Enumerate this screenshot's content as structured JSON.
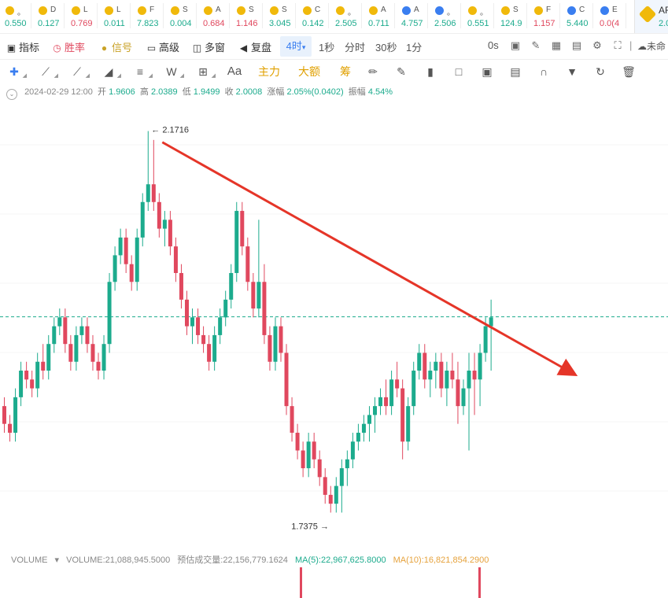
{
  "ticker_strip": [
    {
      "symbol": "。",
      "price": "0.550",
      "dir": "up",
      "icon_color": "#f0b90b"
    },
    {
      "symbol": "D",
      "price": "0.127",
      "dir": "up",
      "icon_color": "#f0b90b"
    },
    {
      "symbol": "L",
      "price": "0.769",
      "dir": "dn",
      "icon_color": "#f0b90b"
    },
    {
      "symbol": "L",
      "price": "0.011",
      "dir": "up",
      "icon_color": "#f0b90b"
    },
    {
      "symbol": "F",
      "price": "7.823",
      "dir": "up",
      "icon_color": "#f0b90b"
    },
    {
      "symbol": "S",
      "price": "0.004",
      "dir": "up",
      "icon_color": "#f0b90b"
    },
    {
      "symbol": "A",
      "price": "0.684",
      "dir": "dn",
      "icon_color": "#f0b90b"
    },
    {
      "symbol": "S",
      "price": "1.146",
      "dir": "dn",
      "icon_color": "#f0b90b"
    },
    {
      "symbol": "S",
      "price": "3.045",
      "dir": "up",
      "icon_color": "#f0b90b"
    },
    {
      "symbol": "C",
      "price": "0.142",
      "dir": "up",
      "icon_color": "#f0b90b"
    },
    {
      "symbol": "。",
      "price": "2.505",
      "dir": "up",
      "icon_color": "#f0b90b"
    },
    {
      "symbol": "A",
      "price": "0.711",
      "dir": "up",
      "icon_color": "#f0b90b"
    },
    {
      "symbol": "A",
      "price": "4.757",
      "dir": "up",
      "icon_color": "#3a7ef0"
    },
    {
      "symbol": "。",
      "price": "2.506",
      "dir": "up",
      "icon_color": "#3a7ef0"
    },
    {
      "symbol": "。",
      "price": "0.551",
      "dir": "up",
      "icon_color": "#f0b90b"
    },
    {
      "symbol": "S",
      "price": "124.9",
      "dir": "up",
      "icon_color": "#f0b90b"
    },
    {
      "symbol": "F",
      "price": "1.157",
      "dir": "dn",
      "icon_color": "#f0b90b"
    },
    {
      "symbol": "C",
      "price": "5.440",
      "dir": "up",
      "icon_color": "#3a7ef0"
    },
    {
      "symbol": "E",
      "price": "0.0(4",
      "dir": "dn",
      "icon_color": "#3a7ef0"
    }
  ],
  "active_ticker": {
    "symbol": "AF",
    "price": "2.0"
  },
  "toolbar": {
    "indicators": "指标",
    "win_rate": "胜率",
    "signal": "信号",
    "advanced": "高级",
    "multi_window": "多窗",
    "replay": "复盘",
    "interval_active": "4时",
    "interval_caret": "▾",
    "intervals": [
      "1秒",
      "分时",
      "30秒",
      "1分"
    ],
    "countdown": "0s",
    "cloud_label": "未命"
  },
  "drawbar": {
    "main_force": "主力",
    "big_order": "大额",
    "chips": "筹",
    "text_tool": "Aa"
  },
  "ohlc": {
    "datetime": "2024-02-29 12:00",
    "open_label": "开",
    "open": "1.9606",
    "high_label": "高",
    "high": "2.0389",
    "low_label": "低",
    "low": "1.9499",
    "close_label": "收",
    "close": "2.0008",
    "change_label": "涨幅",
    "change": "2.05%(0.0402)",
    "amp_label": "振幅",
    "amp": "4.54%"
  },
  "chart_data": {
    "type": "candlestick",
    "colors": {
      "up": "#1cab8d",
      "down": "#e0485e",
      "trendline": "#e53528"
    },
    "current_price_line": 1.9606,
    "high_marker": "← 2.1716",
    "low_marker": "1.7375 →",
    "high_value": 2.1716,
    "low_value": 1.7375,
    "visible_range": {
      "min": 1.72,
      "max": 2.19
    },
    "candles": [
      [
        1.86,
        1.87,
        1.83,
        1.84
      ],
      [
        1.84,
        1.85,
        1.82,
        1.83
      ],
      [
        1.83,
        1.88,
        1.82,
        1.87
      ],
      [
        1.87,
        1.91,
        1.86,
        1.9
      ],
      [
        1.9,
        1.91,
        1.88,
        1.89
      ],
      [
        1.89,
        1.9,
        1.87,
        1.88
      ],
      [
        1.88,
        1.92,
        1.87,
        1.91
      ],
      [
        1.91,
        1.93,
        1.89,
        1.9
      ],
      [
        1.9,
        1.94,
        1.89,
        1.93
      ],
      [
        1.93,
        1.96,
        1.92,
        1.95
      ],
      [
        1.95,
        1.97,
        1.94,
        1.96
      ],
      [
        1.96,
        1.97,
        1.92,
        1.93
      ],
      [
        1.93,
        1.94,
        1.9,
        1.91
      ],
      [
        1.91,
        1.95,
        1.9,
        1.94
      ],
      [
        1.94,
        1.96,
        1.93,
        1.95
      ],
      [
        1.95,
        1.96,
        1.92,
        1.93
      ],
      [
        1.93,
        1.94,
        1.9,
        1.91
      ],
      [
        1.91,
        1.92,
        1.89,
        1.9
      ],
      [
        1.9,
        1.94,
        1.89,
        1.93
      ],
      [
        1.93,
        2.01,
        1.92,
        2.0
      ],
      [
        2.0,
        2.04,
        1.99,
        2.03
      ],
      [
        2.03,
        2.06,
        2.02,
        2.05
      ],
      [
        2.05,
        2.06,
        2.01,
        2.02
      ],
      [
        2.02,
        2.03,
        1.99,
        2.0
      ],
      [
        2.0,
        2.06,
        1.99,
        2.05
      ],
      [
        2.05,
        2.1,
        2.04,
        2.09
      ],
      [
        2.09,
        2.17,
        2.08,
        2.11
      ],
      [
        2.11,
        2.16,
        2.08,
        2.09
      ],
      [
        2.09,
        2.1,
        2.05,
        2.06
      ],
      [
        2.06,
        2.08,
        2.04,
        2.07
      ],
      [
        2.07,
        2.08,
        2.03,
        2.04
      ],
      [
        2.04,
        2.05,
        2.0,
        2.01
      ],
      [
        2.01,
        2.02,
        1.97,
        1.98
      ],
      [
        1.98,
        1.99,
        1.94,
        1.95
      ],
      [
        1.95,
        1.97,
        1.93,
        1.96
      ],
      [
        1.96,
        1.97,
        1.93,
        1.94
      ],
      [
        1.94,
        1.95,
        1.92,
        1.93
      ],
      [
        1.93,
        1.94,
        1.9,
        1.91
      ],
      [
        1.91,
        1.95,
        1.9,
        1.94
      ],
      [
        1.94,
        1.97,
        1.93,
        1.96
      ],
      [
        1.96,
        1.99,
        1.95,
        1.98
      ],
      [
        1.98,
        2.02,
        1.97,
        2.01
      ],
      [
        2.01,
        2.09,
        2.0,
        2.08
      ],
      [
        2.08,
        2.09,
        2.03,
        2.04
      ],
      [
        2.04,
        2.05,
        1.99,
        2.0
      ],
      [
        2.0,
        2.01,
        1.96,
        1.97
      ],
      [
        1.97,
        2.07,
        1.96,
        2.0
      ],
      [
        2.0,
        2.02,
        1.93,
        1.94
      ],
      [
        1.94,
        1.95,
        1.9,
        1.91
      ],
      [
        1.91,
        1.96,
        1.9,
        1.95
      ],
      [
        1.95,
        1.96,
        1.91,
        1.92
      ],
      [
        1.92,
        1.93,
        1.85,
        1.86
      ],
      [
        1.86,
        1.87,
        1.82,
        1.83
      ],
      [
        1.83,
        1.84,
        1.8,
        1.81
      ],
      [
        1.81,
        1.82,
        1.78,
        1.79
      ],
      [
        1.79,
        1.83,
        1.78,
        1.82
      ],
      [
        1.82,
        1.83,
        1.79,
        1.8
      ],
      [
        1.8,
        1.81,
        1.77,
        1.78
      ],
      [
        1.78,
        1.79,
        1.75,
        1.76
      ],
      [
        1.76,
        1.77,
        1.74,
        1.75
      ],
      [
        1.75,
        1.78,
        1.74,
        1.77
      ],
      [
        1.77,
        1.8,
        1.74,
        1.79
      ],
      [
        1.79,
        1.81,
        1.77,
        1.8
      ],
      [
        1.8,
        1.83,
        1.79,
        1.82
      ],
      [
        1.82,
        1.84,
        1.81,
        1.83
      ],
      [
        1.83,
        1.85,
        1.82,
        1.84
      ],
      [
        1.84,
        1.86,
        1.82,
        1.85
      ],
      [
        1.85,
        1.87,
        1.83,
        1.86
      ],
      [
        1.86,
        1.88,
        1.85,
        1.87
      ],
      [
        1.87,
        1.89,
        1.85,
        1.86
      ],
      [
        1.86,
        1.9,
        1.85,
        1.89
      ],
      [
        1.89,
        1.91,
        1.87,
        1.88
      ],
      [
        1.88,
        1.89,
        1.8,
        1.82
      ],
      [
        1.82,
        1.87,
        1.81,
        1.86
      ],
      [
        1.86,
        1.91,
        1.85,
        1.9
      ],
      [
        1.9,
        1.93,
        1.89,
        1.92
      ],
      [
        1.92,
        1.93,
        1.88,
        1.89
      ],
      [
        1.89,
        1.91,
        1.87,
        1.9
      ],
      [
        1.9,
        1.92,
        1.88,
        1.91
      ],
      [
        1.91,
        1.92,
        1.87,
        1.88
      ],
      [
        1.88,
        1.91,
        1.86,
        1.9
      ],
      [
        1.9,
        1.92,
        1.88,
        1.89
      ],
      [
        1.89,
        1.91,
        1.84,
        1.86
      ],
      [
        1.86,
        1.89,
        1.85,
        1.88
      ],
      [
        1.88,
        1.92,
        1.81,
        1.9
      ],
      [
        1.9,
        1.92,
        1.85,
        1.89
      ],
      [
        1.89,
        1.93,
        1.86,
        1.92
      ],
      [
        1.92,
        1.96,
        1.91,
        1.95
      ],
      [
        1.95,
        1.98,
        1.9,
        1.96
      ]
    ]
  },
  "volume": {
    "label": "VOLUME",
    "caret": "▾",
    "value_text": "VOLUME:21,088,945.5000",
    "estimated_text": "预估成交量:22,156,779.1624",
    "ma5_text": "MA(5):22,967,625.8000",
    "ma10_text": "MA(10):16,821,854.2900"
  }
}
